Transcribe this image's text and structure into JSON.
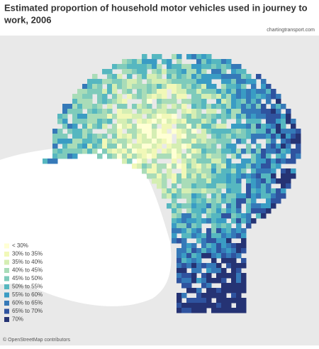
{
  "title": "Estimated proportion of household motor vehicles used in journey to work, 2006",
  "source": "chartingtransport.com",
  "credit": "© OpenStreetMap contributors",
  "legend": [
    {
      "label": "< 30%",
      "color": "#ffffd4"
    },
    {
      "label": "30% to 35%",
      "color": "#f1f8b8"
    },
    {
      "label": "35% to 40%",
      "color": "#d5eeb3"
    },
    {
      "label": "40% to 45%",
      "color": "#a9dcb8"
    },
    {
      "label": "45% to 50%",
      "color": "#7fcbbb"
    },
    {
      "label": "50% to 55%",
      "color": "#56b7c0"
    },
    {
      "label": "55% to 60%",
      "color": "#3a9cc4"
    },
    {
      "label": "60% to 65%",
      "color": "#3579b8"
    },
    {
      "label": "65% to 70%",
      "color": "#2f539f"
    },
    {
      "label": "70%",
      "color": "#253374"
    }
  ]
}
